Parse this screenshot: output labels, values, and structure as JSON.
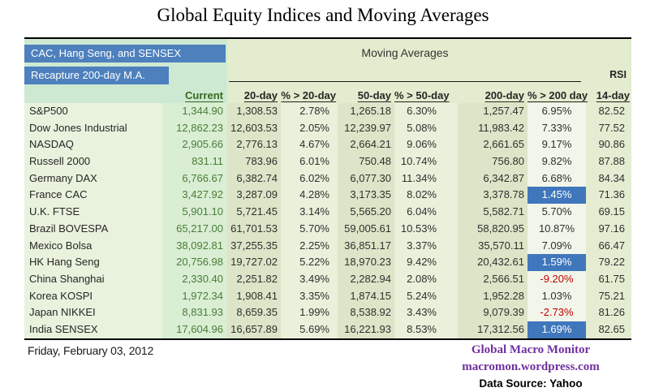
{
  "title": "Global Equity Indices and Moving Averages",
  "header": {
    "callout_1": "CAC, Hang Seng, and SENSEX",
    "callout_2": "Recapture 200-day M.A.",
    "group_label": "Moving Averages",
    "columns": {
      "current": "Current",
      "d20": "20-day",
      "p20": "% > 20-day",
      "d50": "50-day",
      "p50": "% > 50-day",
      "d200": "200-day",
      "p200": "% > 200 day",
      "rsi_top": "RSI",
      "rsi_bottom": "14-day"
    }
  },
  "rows": [
    {
      "name": "S&P500",
      "current": "1,344.90",
      "d20": "1,308.53",
      "p20": "2.78%",
      "d50": "1,265.18",
      "p50": "6.30%",
      "d200": "1,257.47",
      "p200": "6.95%",
      "p200_style": "normal",
      "rsi": "82.52"
    },
    {
      "name": "Dow Jones Industrial",
      "current": "12,862.23",
      "d20": "12,603.53",
      "p20": "2.05%",
      "d50": "12,239.97",
      "p50": "5.08%",
      "d200": "11,983.42",
      "p200": "7.33%",
      "p200_style": "normal",
      "rsi": "77.52"
    },
    {
      "name": "NASDAQ",
      "current": "2,905.66",
      "d20": "2,776.13",
      "p20": "4.67%",
      "d50": "2,664.21",
      "p50": "9.06%",
      "d200": "2,661.65",
      "p200": "9.17%",
      "p200_style": "normal",
      "rsi": "90.86"
    },
    {
      "name": "Russell 2000",
      "current": "831.11",
      "d20": "783.96",
      "p20": "6.01%",
      "d50": "750.48",
      "p50": "10.74%",
      "d200": "756.80",
      "p200": "9.82%",
      "p200_style": "normal",
      "rsi": "87.88"
    },
    {
      "name": "Germany DAX",
      "current": "6,766.67",
      "d20": "6,382.74",
      "p20": "6.02%",
      "d50": "6,077.30",
      "p50": "11.34%",
      "d200": "6,342.87",
      "p200": "6.68%",
      "p200_style": "normal",
      "rsi": "84.34"
    },
    {
      "name": "France CAC",
      "current": "3,427.92",
      "d20": "3,287.09",
      "p20": "4.28%",
      "d50": "3,173.35",
      "p50": "8.02%",
      "d200": "3,378.78",
      "p200": "1.45%",
      "p200_style": "highlight",
      "rsi": "71.36"
    },
    {
      "name": "U.K. FTSE",
      "current": "5,901.10",
      "d20": "5,721.45",
      "p20": "3.14%",
      "d50": "5,565.20",
      "p50": "6.04%",
      "d200": "5,582.71",
      "p200": "5.70%",
      "p200_style": "normal",
      "rsi": "69.15"
    },
    {
      "name": "Brazil BOVESPA",
      "current": "65,217.00",
      "d20": "61,701.53",
      "p20": "5.70%",
      "d50": "59,005.61",
      "p50": "10.53%",
      "d200": "58,820.95",
      "p200": "10.87%",
      "p200_style": "normal",
      "rsi": "97.16"
    },
    {
      "name": "Mexico Bolsa",
      "current": "38,092.81",
      "d20": "37,255.35",
      "p20": "2.25%",
      "d50": "36,851.17",
      "p50": "3.37%",
      "d200": "35,570.11",
      "p200": "7.09%",
      "p200_style": "normal",
      "rsi": "66.47"
    },
    {
      "name": "HK  Hang Seng",
      "current": "20,756.98",
      "d20": "19,727.02",
      "p20": "5.22%",
      "d50": "18,970.23",
      "p50": "9.42%",
      "d200": "20,432.61",
      "p200": "1.59%",
      "p200_style": "highlight",
      "rsi": "79.22"
    },
    {
      "name": "China Shanghai",
      "current": "2,330.40",
      "d20": "2,251.82",
      "p20": "3.49%",
      "d50": "2,282.94",
      "p50": "2.08%",
      "d200": "2,566.51",
      "p200": "-9.20%",
      "p200_style": "negative",
      "rsi": "61.75"
    },
    {
      "name": "Korea KOSPI",
      "current": "1,972.34",
      "d20": "1,908.41",
      "p20": "3.35%",
      "d50": "1,874.15",
      "p50": "5.24%",
      "d200": "1,952.28",
      "p200": "1.03%",
      "p200_style": "normal",
      "rsi": "75.21"
    },
    {
      "name": "Japan NIKKEI",
      "current": "8,831.93",
      "d20": "8,659.35",
      "p20": "1.99%",
      "d50": "8,538.92",
      "p50": "3.43%",
      "d200": "9,079.39",
      "p200": "-2.73%",
      "p200_style": "negative",
      "rsi": "81.26"
    },
    {
      "name": "India SENSEX",
      "current": "17,604.96",
      "d20": "16,657.89",
      "p20": "5.69%",
      "d50": "16,221.93",
      "p50": "8.53%",
      "d200": "17,312.56",
      "p200": "1.69%",
      "p200_style": "highlight",
      "rsi": "82.65"
    }
  ],
  "footer": {
    "date": "Friday, February 03, 2012",
    "brand_line1": "Global Macro Monitor",
    "brand_line2": "macromon.wordpress.com",
    "source": "Data Source: Yahoo"
  },
  "colors": {
    "accent_blue": "#4d80bd",
    "highlight_blue": "#4077bc",
    "negative_red": "#c00000",
    "brand_purple": "#7030a0",
    "current_green": "#4a7c38"
  }
}
